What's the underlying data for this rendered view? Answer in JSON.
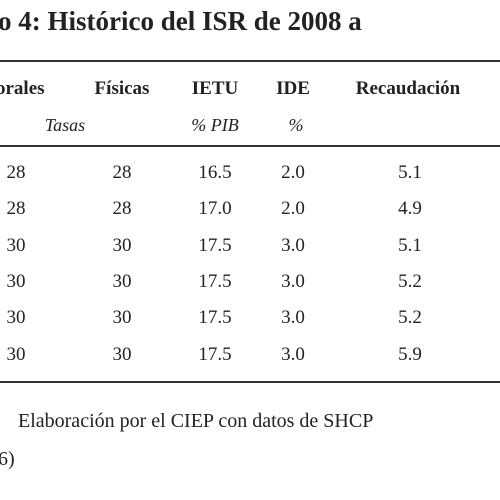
{
  "table": {
    "title": "o 4: Histórico del ISR de 2008 a",
    "headers": [
      "orales",
      "Físicas",
      "IETU",
      "IDE",
      "Recaudación"
    ],
    "subheaders": [
      "Tasas",
      "% PIB",
      "%"
    ],
    "rows": [
      [
        "28",
        "28",
        "16.5",
        "2.0",
        "5.1"
      ],
      [
        "28",
        "28",
        "17.0",
        "2.0",
        "4.9"
      ],
      [
        "30",
        "30",
        "17.5",
        "3.0",
        "5.1"
      ],
      [
        "30",
        "30",
        "17.5",
        "3.0",
        "5.2"
      ],
      [
        "30",
        "30",
        "17.5",
        "3.0",
        "5.2"
      ],
      [
        "30",
        "30",
        "17.5",
        "3.0",
        "5.9"
      ]
    ]
  },
  "footer": {
    "source": "Elaboración por el CIEP con datos de SHCP",
    "continuation": "6)"
  }
}
